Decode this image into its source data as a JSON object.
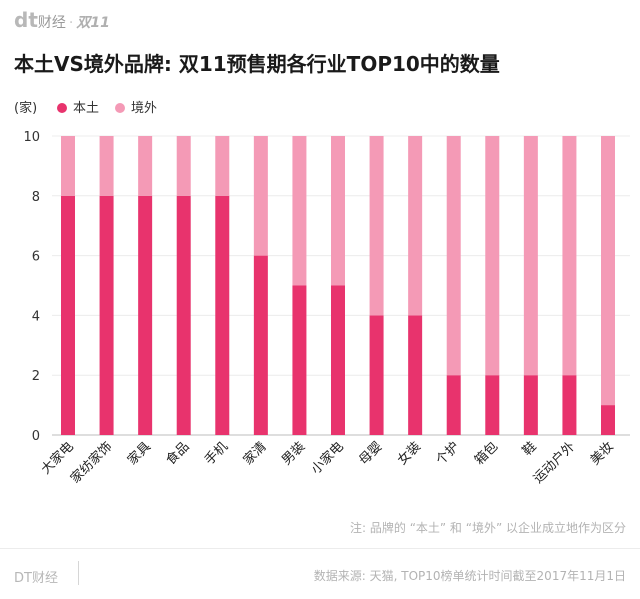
{
  "brand": {
    "logo": "dt",
    "name": "财经",
    "separator": "·",
    "tag": "双11"
  },
  "chart_data": {
    "type": "bar",
    "stacked": true,
    "title": "本土VS境外品牌: 双11预售期各行业TOP10中的数量",
    "ylabel": "(家)",
    "ylim": [
      0,
      10
    ],
    "yticks": [
      0,
      2,
      4,
      6,
      8,
      10
    ],
    "categories": [
      "大家电",
      "家纺家饰",
      "家具",
      "食品",
      "手机",
      "家清",
      "男装",
      "小家电",
      "母婴",
      "女装",
      "个护",
      "箱包",
      "鞋",
      "运动户外",
      "美妆"
    ],
    "series": [
      {
        "name": "本土",
        "color": "#e8336d",
        "values": [
          8,
          8,
          8,
          8,
          8,
          6,
          5,
          5,
          4,
          4,
          2,
          2,
          2,
          2,
          1
        ]
      },
      {
        "name": "境外",
        "color": "#f49ab6",
        "values": [
          2,
          2,
          2,
          2,
          2,
          4,
          5,
          5,
          6,
          6,
          8,
          8,
          8,
          8,
          9
        ]
      }
    ],
    "legend": "top-left"
  },
  "note": "注: 品牌的 “本土” 和 “境外” 以企业成立地作为区分",
  "footer": {
    "brand": "DT财经",
    "source": "数据来源: 天猫, TOP10榜单统计时间截至2017年11月1日"
  }
}
